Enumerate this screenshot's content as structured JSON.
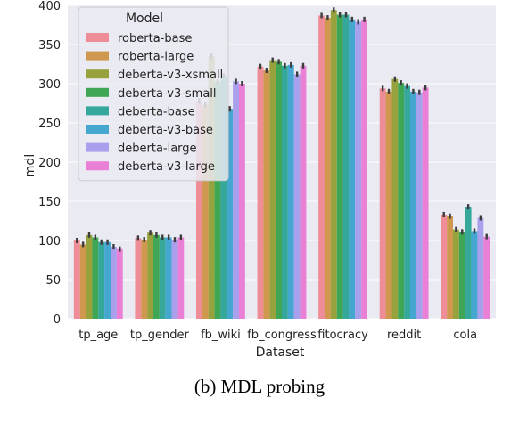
{
  "caption": "(b) MDL probing",
  "chart_data": {
    "type": "bar",
    "title": "",
    "xlabel": "Dataset",
    "ylabel": "mdl",
    "ylim": [
      0,
      400
    ],
    "yticks": [
      0,
      50,
      100,
      150,
      200,
      250,
      300,
      350,
      400
    ],
    "grid": true,
    "legend_title": "Model",
    "legend_position": "upper-left",
    "categories": [
      "tp_age",
      "tp_gender",
      "fb_wiki",
      "fb_congress",
      "fitocracy",
      "reddit",
      "cola"
    ],
    "series": [
      {
        "name": "roberta-base",
        "color": "#ee8c97",
        "values": [
          100,
          103,
          278,
          322,
          387,
          294,
          133
        ]
      },
      {
        "name": "roberta-large",
        "color": "#d0984e",
        "values": [
          95,
          101,
          273,
          317,
          384,
          290,
          131
        ]
      },
      {
        "name": "deberta-v3-xsmall",
        "color": "#97a23c",
        "values": [
          107,
          110,
          335,
          330,
          394,
          306,
          114
        ]
      },
      {
        "name": "deberta-v3-small",
        "color": "#3ea654",
        "values": [
          104,
          107,
          302,
          328,
          388,
          301,
          111
        ]
      },
      {
        "name": "deberta-base",
        "color": "#35a79b",
        "values": [
          98,
          104,
          310,
          323,
          388,
          297,
          143
        ]
      },
      {
        "name": "deberta-v3-base",
        "color": "#45a6d0",
        "values": [
          98,
          104,
          268,
          324,
          382,
          290,
          112
        ]
      },
      {
        "name": "deberta-large",
        "color": "#a8a0ec",
        "values": [
          92,
          101,
          303,
          312,
          379,
          289,
          129
        ]
      },
      {
        "name": "deberta-v3-large",
        "color": "#e980d6",
        "values": [
          89,
          104,
          300,
          323,
          382,
          295,
          105
        ]
      }
    ]
  }
}
